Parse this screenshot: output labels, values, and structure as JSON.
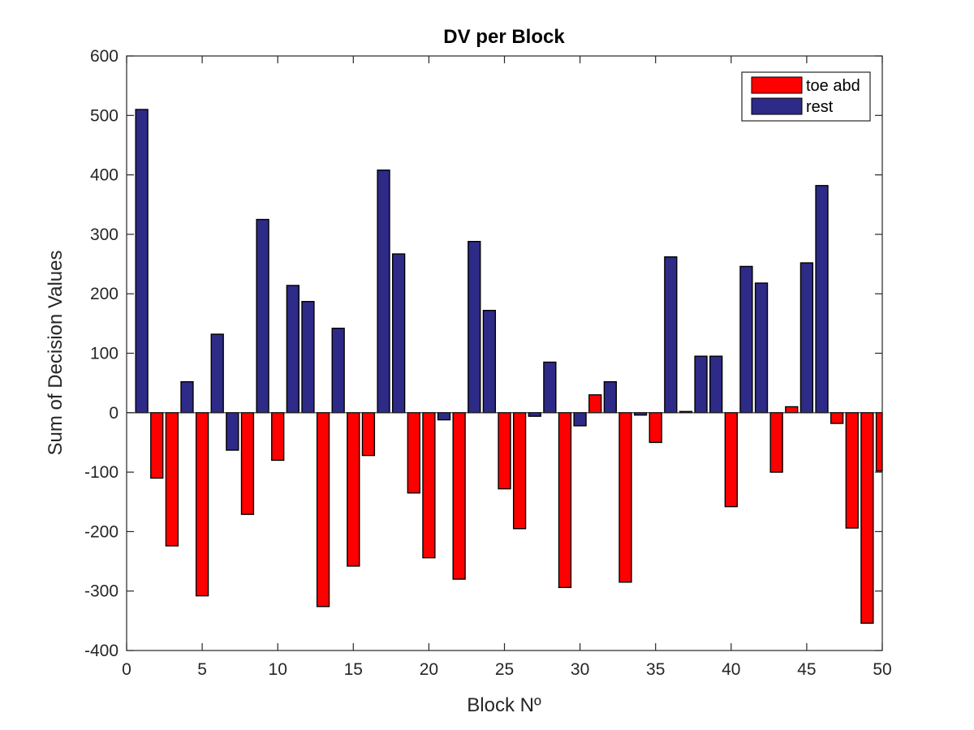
{
  "chart_data": {
    "type": "bar",
    "title": "DV per Block",
    "xlabel": "Block Nº",
    "ylabel": "Sum of Decision Values",
    "xlim": [
      0,
      50
    ],
    "ylim": [
      -400,
      600
    ],
    "xticks": [
      0,
      5,
      10,
      15,
      20,
      25,
      30,
      35,
      40,
      45,
      50
    ],
    "yticks": [
      -400,
      -300,
      -200,
      -100,
      0,
      100,
      200,
      300,
      400,
      500,
      600
    ],
    "grid": false,
    "legend_position": "top-right",
    "series": [
      {
        "name": "toe abd",
        "color": "#ff0000",
        "points": [
          {
            "x": 2,
            "y": -110
          },
          {
            "x": 3,
            "y": -224
          },
          {
            "x": 5,
            "y": -308
          },
          {
            "x": 8,
            "y": -171
          },
          {
            "x": 10,
            "y": -80
          },
          {
            "x": 13,
            "y": -326
          },
          {
            "x": 15,
            "y": -258
          },
          {
            "x": 16,
            "y": -72
          },
          {
            "x": 19,
            "y": -135
          },
          {
            "x": 20,
            "y": -244
          },
          {
            "x": 22,
            "y": -280
          },
          {
            "x": 25,
            "y": -128
          },
          {
            "x": 26,
            "y": -195
          },
          {
            "x": 29,
            "y": -294
          },
          {
            "x": 31,
            "y": 30
          },
          {
            "x": 33,
            "y": -285
          },
          {
            "x": 35,
            "y": -50
          },
          {
            "x": 37,
            "y": 2
          },
          {
            "x": 40,
            "y": -158
          },
          {
            "x": 43,
            "y": -100
          },
          {
            "x": 44,
            "y": 10
          },
          {
            "x": 47,
            "y": -18
          },
          {
            "x": 48,
            "y": -194
          },
          {
            "x": 49,
            "y": -354
          },
          {
            "x": 50,
            "y": -98
          }
        ]
      },
      {
        "name": "rest",
        "color": "#2e2a87",
        "points": [
          {
            "x": 1,
            "y": 510
          },
          {
            "x": 4,
            "y": 52
          },
          {
            "x": 6,
            "y": 132
          },
          {
            "x": 7,
            "y": -63
          },
          {
            "x": 9,
            "y": 325
          },
          {
            "x": 11,
            "y": 214
          },
          {
            "x": 12,
            "y": 187
          },
          {
            "x": 14,
            "y": 142
          },
          {
            "x": 17,
            "y": 408
          },
          {
            "x": 18,
            "y": 267
          },
          {
            "x": 21,
            "y": -12
          },
          {
            "x": 23,
            "y": 288
          },
          {
            "x": 24,
            "y": 172
          },
          {
            "x": 27,
            "y": -6
          },
          {
            "x": 28,
            "y": 85
          },
          {
            "x": 30,
            "y": -22
          },
          {
            "x": 32,
            "y": 52
          },
          {
            "x": 34,
            "y": -4
          },
          {
            "x": 36,
            "y": 262
          },
          {
            "x": 38,
            "y": 95
          },
          {
            "x": 39,
            "y": 95
          },
          {
            "x": 41,
            "y": 246
          },
          {
            "x": 42,
            "y": 218
          },
          {
            "x": 45,
            "y": 252
          },
          {
            "x": 46,
            "y": 382
          }
        ]
      }
    ]
  }
}
